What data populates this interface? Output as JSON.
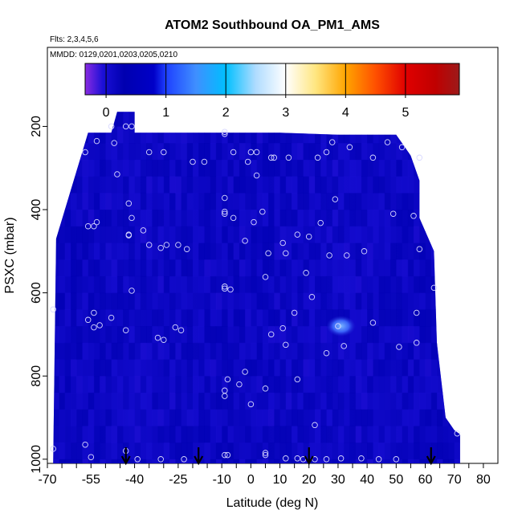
{
  "chart_data": {
    "type": "heatmap",
    "title": "ATOM2 Southbound OA_PM1_AMS",
    "subtitle": "Flts: 2,3,4,5,6",
    "note": "MMDD: 0129,0201,0203,0205,0210",
    "xlabel": "Latitude (deg N)",
    "ylabel": "PSXC (mbar)",
    "xlim": [
      -70,
      85
    ],
    "ylim": [
      1010,
      10
    ],
    "x_tick_labels": [
      "-70",
      "-55",
      "-40",
      "-25",
      "-10",
      "0",
      "10",
      "20",
      "30",
      "40",
      "50",
      "60",
      "70",
      "80"
    ],
    "x_tick_values": [
      -70,
      -55,
      -40,
      -25,
      -10,
      0,
      10,
      20,
      30,
      40,
      50,
      60,
      70,
      80
    ],
    "x_minor_step": 5,
    "y_tick_labels": [
      "200",
      "400",
      "600",
      "800",
      "1000"
    ],
    "y_tick_values": [
      200,
      400,
      600,
      800,
      1000
    ],
    "colorbar": {
      "range": [
        -0.35,
        5.9
      ],
      "tick_labels": [
        "0",
        "1",
        "2",
        "3",
        "4",
        "5"
      ],
      "tick_values": [
        0,
        1,
        2,
        3,
        4,
        5
      ],
      "colors": [
        {
          "v": -0.35,
          "c": "#8a2be2"
        },
        {
          "v": -0.05,
          "c": "#1a0fd6"
        },
        {
          "v": 0.3,
          "c": "#0000b0"
        },
        {
          "v": 0.8,
          "c": "#0000c8"
        },
        {
          "v": 1.0,
          "c": "#1e40ff"
        },
        {
          "v": 1.5,
          "c": "#3f8fff"
        },
        {
          "v": 2.0,
          "c": "#00bfff"
        },
        {
          "v": 2.5,
          "c": "#b0dcff"
        },
        {
          "v": 3.0,
          "c": "#ffffff"
        },
        {
          "v": 3.5,
          "c": "#ffe680"
        },
        {
          "v": 4.0,
          "c": "#ffa500"
        },
        {
          "v": 4.5,
          "c": "#ff5000"
        },
        {
          "v": 5.0,
          "c": "#e00000"
        },
        {
          "v": 5.5,
          "c": "#c00000"
        },
        {
          "v": 5.9,
          "c": "#9c1a1a"
        }
      ]
    },
    "field_outline_latitude": [
      -68,
      -67,
      -56,
      -48,
      -46,
      -40,
      -40,
      -20,
      -10,
      10,
      30,
      50,
      52,
      55,
      58,
      58,
      63,
      64,
      67,
      70,
      72,
      72,
      -68
    ],
    "field_outline_pressure": [
      1010,
      470,
      215,
      215,
      165,
      165,
      215,
      215,
      215,
      215,
      220,
      220,
      240,
      270,
      330,
      420,
      500,
      720,
      900,
      930,
      940,
      1010,
      1010
    ],
    "field_background_value": 0.15,
    "field_highlight": {
      "lat_center": 31,
      "p_center": 680,
      "lat_halfwidth": 5,
      "p_halfwidth": 25,
      "value": 1.6
    },
    "sample_points": [
      {
        "lat": -48,
        "p": 200
      },
      {
        "lat": -43,
        "p": 200
      },
      {
        "lat": -41,
        "p": 200
      },
      {
        "lat": -57,
        "p": 262
      },
      {
        "lat": -53,
        "p": 235
      },
      {
        "lat": -47,
        "p": 240
      },
      {
        "lat": -35,
        "p": 262
      },
      {
        "lat": -30,
        "p": 262
      },
      {
        "lat": -20,
        "p": 285
      },
      {
        "lat": -16,
        "p": 285
      },
      {
        "lat": -9,
        "p": 213
      },
      {
        "lat": -9,
        "p": 218
      },
      {
        "lat": -6,
        "p": 262
      },
      {
        "lat": -1,
        "p": 285
      },
      {
        "lat": 0,
        "p": 262
      },
      {
        "lat": 2,
        "p": 262
      },
      {
        "lat": 2,
        "p": 318
      },
      {
        "lat": 7,
        "p": 275
      },
      {
        "lat": 8,
        "p": 275
      },
      {
        "lat": 13,
        "p": 275
      },
      {
        "lat": 23,
        "p": 275
      },
      {
        "lat": 26,
        "p": 262
      },
      {
        "lat": 28,
        "p": 238
      },
      {
        "lat": 34,
        "p": 250
      },
      {
        "lat": 42,
        "p": 275
      },
      {
        "lat": 47,
        "p": 238
      },
      {
        "lat": 52,
        "p": 250
      },
      {
        "lat": 58,
        "p": 275
      },
      {
        "lat": -46,
        "p": 315
      },
      {
        "lat": -42,
        "p": 385
      },
      {
        "lat": -41,
        "p": 420
      },
      {
        "lat": -53,
        "p": 430
      },
      {
        "lat": -56,
        "p": 440
      },
      {
        "lat": -54,
        "p": 440
      },
      {
        "lat": -42,
        "p": 460
      },
      {
        "lat": -42,
        "p": 462
      },
      {
        "lat": -37,
        "p": 450
      },
      {
        "lat": -35,
        "p": 485
      },
      {
        "lat": -31,
        "p": 492
      },
      {
        "lat": -29,
        "p": 485
      },
      {
        "lat": -25,
        "p": 485
      },
      {
        "lat": -22,
        "p": 495
      },
      {
        "lat": -9,
        "p": 372
      },
      {
        "lat": -9,
        "p": 405
      },
      {
        "lat": -9,
        "p": 410
      },
      {
        "lat": -6,
        "p": 420
      },
      {
        "lat": -2,
        "p": 475
      },
      {
        "lat": 1,
        "p": 430
      },
      {
        "lat": 4,
        "p": 405
      },
      {
        "lat": 6,
        "p": 505
      },
      {
        "lat": 11,
        "p": 480
      },
      {
        "lat": 12,
        "p": 505
      },
      {
        "lat": 16,
        "p": 460
      },
      {
        "lat": 20,
        "p": 465
      },
      {
        "lat": 24,
        "p": 432
      },
      {
        "lat": 27,
        "p": 510
      },
      {
        "lat": 29,
        "p": 375
      },
      {
        "lat": 33,
        "p": 510
      },
      {
        "lat": 39,
        "p": 500
      },
      {
        "lat": 49,
        "p": 410
      },
      {
        "lat": 56,
        "p": 415
      },
      {
        "lat": 58,
        "p": 495
      },
      {
        "lat": 63,
        "p": 588
      },
      {
        "lat": -68,
        "p": 640
      },
      {
        "lat": -56,
        "p": 665
      },
      {
        "lat": -54,
        "p": 648
      },
      {
        "lat": -54,
        "p": 683
      },
      {
        "lat": -52,
        "p": 678
      },
      {
        "lat": -48,
        "p": 660
      },
      {
        "lat": -43,
        "p": 690
      },
      {
        "lat": -41,
        "p": 595
      },
      {
        "lat": -26,
        "p": 683
      },
      {
        "lat": -24,
        "p": 690
      },
      {
        "lat": -32,
        "p": 708
      },
      {
        "lat": -30,
        "p": 713
      },
      {
        "lat": -9,
        "p": 590
      },
      {
        "lat": -9,
        "p": 585
      },
      {
        "lat": -7,
        "p": 592
      },
      {
        "lat": 5,
        "p": 562
      },
      {
        "lat": 7,
        "p": 700
      },
      {
        "lat": 11,
        "p": 685
      },
      {
        "lat": 15,
        "p": 648
      },
      {
        "lat": 19,
        "p": 552
      },
      {
        "lat": 21,
        "p": 610
      },
      {
        "lat": 26,
        "p": 745
      },
      {
        "lat": 30,
        "p": 680
      },
      {
        "lat": 32,
        "p": 728
      },
      {
        "lat": 42,
        "p": 672
      },
      {
        "lat": 51,
        "p": 730
      },
      {
        "lat": 57,
        "p": 648
      },
      {
        "lat": 57,
        "p": 720
      },
      {
        "lat": -9,
        "p": 835
      },
      {
        "lat": -8,
        "p": 808
      },
      {
        "lat": -4,
        "p": 820
      },
      {
        "lat": -2,
        "p": 790
      },
      {
        "lat": -9,
        "p": 848
      },
      {
        "lat": 0,
        "p": 868
      },
      {
        "lat": 5,
        "p": 830
      },
      {
        "lat": 12,
        "p": 725
      },
      {
        "lat": 16,
        "p": 808
      },
      {
        "lat": 22,
        "p": 918
      },
      {
        "lat": -68,
        "p": 975
      },
      {
        "lat": -57,
        "p": 965
      },
      {
        "lat": -55,
        "p": 995
      },
      {
        "lat": -43,
        "p": 980
      },
      {
        "lat": -39,
        "p": 1000
      },
      {
        "lat": -31,
        "p": 1000
      },
      {
        "lat": -23,
        "p": 1000
      },
      {
        "lat": -9,
        "p": 990
      },
      {
        "lat": -8,
        "p": 990
      },
      {
        "lat": 5,
        "p": 990
      },
      {
        "lat": 5,
        "p": 985
      },
      {
        "lat": 12,
        "p": 998
      },
      {
        "lat": 16,
        "p": 998
      },
      {
        "lat": 18,
        "p": 1000
      },
      {
        "lat": 22,
        "p": 1000
      },
      {
        "lat": 26,
        "p": 1000
      },
      {
        "lat": 31,
        "p": 998
      },
      {
        "lat": 38,
        "p": 998
      },
      {
        "lat": 44,
        "p": 1000
      },
      {
        "lat": 50,
        "p": 1000
      },
      {
        "lat": 71,
        "p": 938
      }
    ],
    "arrow_latitudes": [
      -43,
      -18,
      20,
      62
    ]
  }
}
